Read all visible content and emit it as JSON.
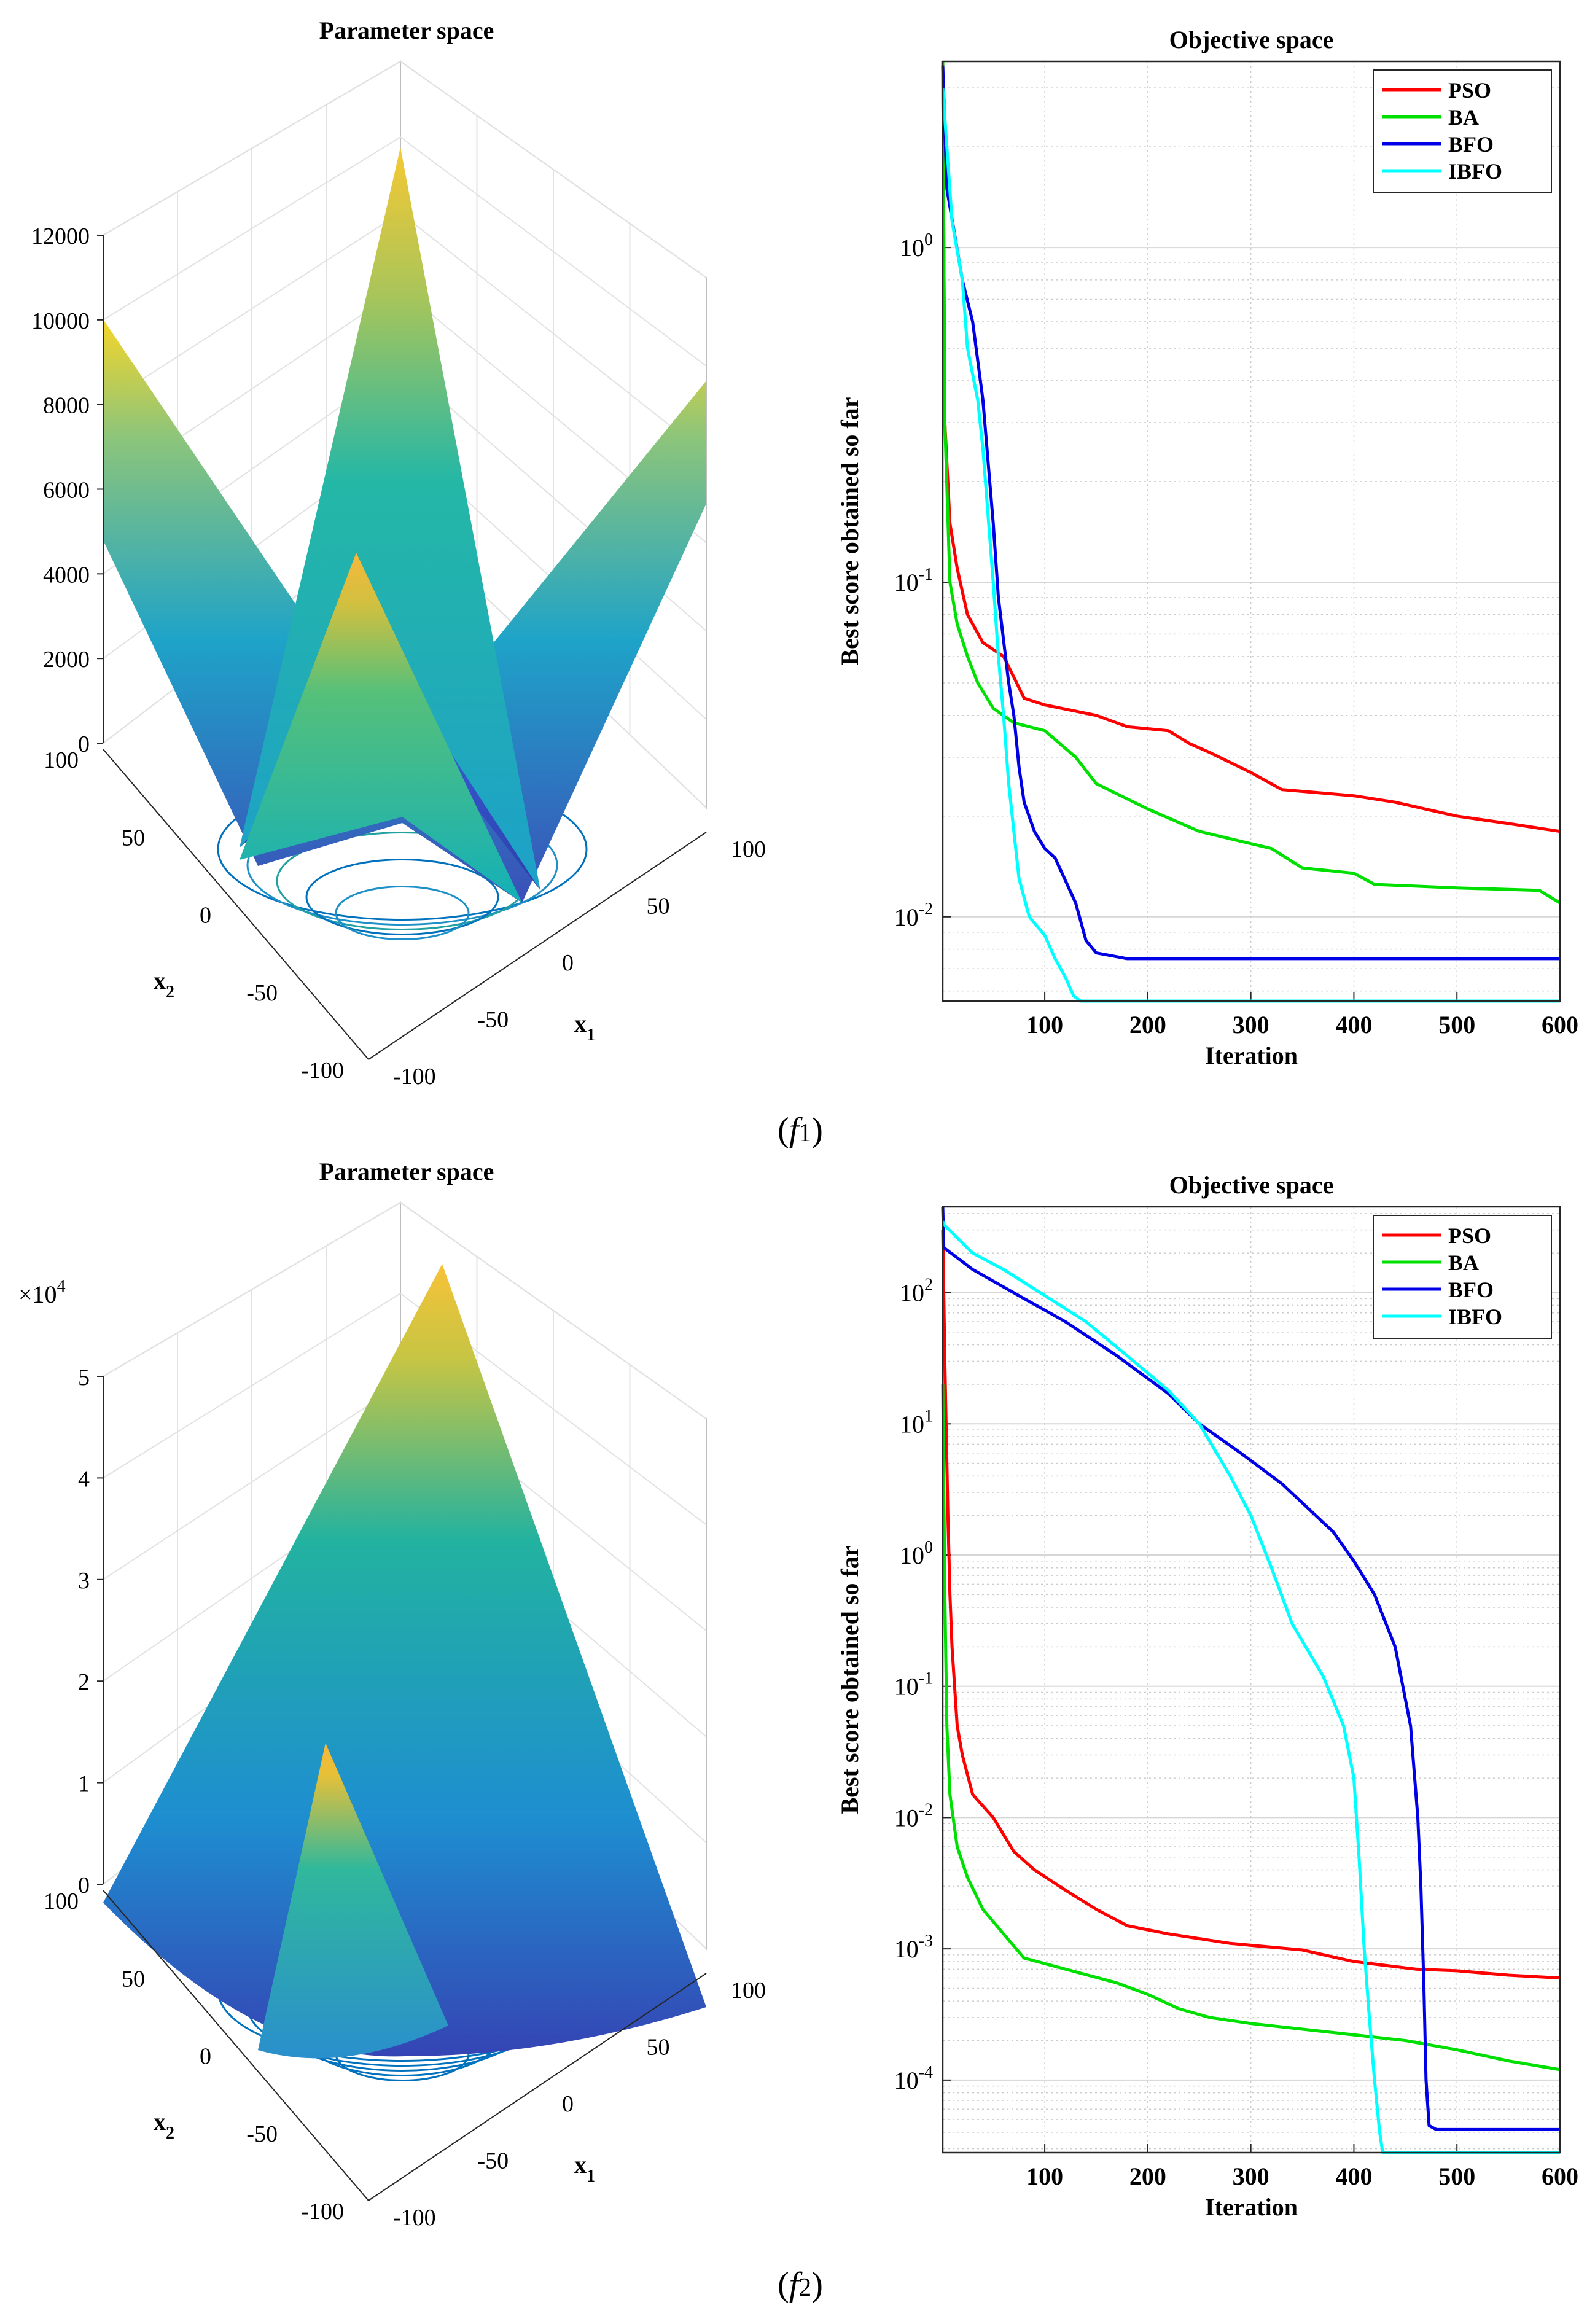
{
  "colors": {
    "pso": "#ff0000",
    "ba": "#00e000",
    "bfo": "#0000e6",
    "ibfo": "#00ffff",
    "grid": "#d0d0d0",
    "axis": "#262626"
  },
  "rows": [
    {
      "caption": {
        "var": "f",
        "sub": "1"
      },
      "surface": {
        "title": "Parameter space",
        "zticks": [
          "12000",
          "10000",
          "8000",
          "6000",
          "4000",
          "2000",
          "0"
        ],
        "zmult": "",
        "x1ticks": [
          "-100",
          "-50",
          "0",
          "50",
          "100"
        ],
        "x2ticks": [
          "100",
          "50",
          "0",
          "-50",
          "-100"
        ],
        "x1label": "x",
        "x1sub": "1",
        "x2label": "x",
        "x2sub": "2"
      },
      "chart_data": {
        "type": "line",
        "title": "Objective space",
        "xlabel": "Iteration",
        "ylabel": "Best score obtained so far",
        "yscale": "log",
        "xlim": [
          1,
          600
        ],
        "ylim": [
          0.0056,
          3.6
        ],
        "xticks": [
          "100",
          "200",
          "300",
          "400",
          "500",
          "600"
        ],
        "yticks": [
          {
            "base": "10",
            "exp": "0"
          },
          {
            "base": "10",
            "exp": "-1"
          },
          {
            "base": "10",
            "exp": "-2"
          }
        ],
        "legend": "top-right",
        "series": [
          {
            "name": "PSO",
            "color": "pso",
            "points": [
              [
                1,
                3.6
              ],
              [
                3,
                0.3
              ],
              [
                8,
                0.15
              ],
              [
                15,
                0.11
              ],
              [
                25,
                0.08
              ],
              [
                40,
                0.066
              ],
              [
                60,
                0.06
              ],
              [
                70,
                0.052
              ],
              [
                80,
                0.045
              ],
              [
                100,
                0.043
              ],
              [
                150,
                0.04
              ],
              [
                180,
                0.037
              ],
              [
                220,
                0.036
              ],
              [
                240,
                0.033
              ],
              [
                260,
                0.031
              ],
              [
                300,
                0.027
              ],
              [
                330,
                0.024
              ],
              [
                400,
                0.023
              ],
              [
                440,
                0.022
              ],
              [
                500,
                0.02
              ],
              [
                550,
                0.019
              ],
              [
                600,
                0.018
              ]
            ]
          },
          {
            "name": "BA",
            "color": "ba",
            "points": [
              [
                1,
                3.6
              ],
              [
                3,
                0.3
              ],
              [
                8,
                0.1
              ],
              [
                15,
                0.075
              ],
              [
                25,
                0.06
              ],
              [
                35,
                0.05
              ],
              [
                50,
                0.042
              ],
              [
                70,
                0.038
              ],
              [
                100,
                0.036
              ],
              [
                130,
                0.03
              ],
              [
                150,
                0.025
              ],
              [
                200,
                0.021
              ],
              [
                250,
                0.018
              ],
              [
                320,
                0.016
              ],
              [
                350,
                0.014
              ],
              [
                400,
                0.0135
              ],
              [
                420,
                0.0125
              ],
              [
                500,
                0.0122
              ],
              [
                580,
                0.012
              ],
              [
                600,
                0.011
              ]
            ]
          },
          {
            "name": "BFO",
            "color": "bfo",
            "points": [
              [
                1,
                3.5
              ],
              [
                5,
                1.5
              ],
              [
                20,
                0.8
              ],
              [
                30,
                0.6
              ],
              [
                40,
                0.35
              ],
              [
                50,
                0.15
              ],
              [
                55,
                0.09
              ],
              [
                65,
                0.05
              ],
              [
                70,
                0.04
              ],
              [
                75,
                0.028
              ],
              [
                80,
                0.022
              ],
              [
                90,
                0.018
              ],
              [
                100,
                0.016
              ],
              [
                110,
                0.015
              ],
              [
                130,
                0.011
              ],
              [
                140,
                0.0085
              ],
              [
                150,
                0.0078
              ],
              [
                180,
                0.0075
              ],
              [
                600,
                0.0075
              ]
            ]
          },
          {
            "name": "IBFO",
            "color": "ibfo",
            "points": [
              [
                1,
                3.0
              ],
              [
                10,
                1.2
              ],
              [
                20,
                0.8
              ],
              [
                25,
                0.5
              ],
              [
                35,
                0.35
              ],
              [
                40,
                0.25
              ],
              [
                50,
                0.1
              ],
              [
                55,
                0.06
              ],
              [
                60,
                0.04
              ],
              [
                65,
                0.025
              ],
              [
                70,
                0.018
              ],
              [
                75,
                0.013
              ],
              [
                85,
                0.01
              ],
              [
                100,
                0.0088
              ],
              [
                110,
                0.0075
              ],
              [
                120,
                0.0066
              ],
              [
                128,
                0.0058
              ],
              [
                135,
                0.0056
              ],
              [
                600,
                0.0056
              ]
            ]
          }
        ]
      }
    },
    {
      "caption": {
        "var": "f",
        "sub": "2"
      },
      "surface": {
        "title": "Parameter space",
        "zticks": [
          "5",
          "4",
          "3",
          "2",
          "1",
          "0"
        ],
        "zmult": "×10",
        "zmultexp": "4",
        "x1ticks": [
          "-100",
          "-50",
          "0",
          "50",
          "100"
        ],
        "x2ticks": [
          "100",
          "50",
          "0",
          "-50",
          "-100"
        ],
        "x1label": "x",
        "x1sub": "1",
        "x2label": "x",
        "x2sub": "2"
      },
      "chart_data": {
        "type": "line",
        "title": "Objective space",
        "xlabel": "Iteration",
        "ylabel": "Best score obtained so far",
        "yscale": "log",
        "xlim": [
          1,
          600
        ],
        "ylim": [
          2.8e-05,
          450
        ],
        "xticks": [
          "100",
          "200",
          "300",
          "400",
          "500",
          "600"
        ],
        "yticks": [
          {
            "base": "10",
            "exp": "2"
          },
          {
            "base": "10",
            "exp": "1"
          },
          {
            "base": "10",
            "exp": "0"
          },
          {
            "base": "10",
            "exp": "-1"
          },
          {
            "base": "10",
            "exp": "-2"
          },
          {
            "base": "10",
            "exp": "-3"
          },
          {
            "base": "10",
            "exp": "-4"
          }
        ],
        "legend": "top-right",
        "series": [
          {
            "name": "PSO",
            "color": "pso",
            "points": [
              [
                1,
                300
              ],
              [
                3,
                30
              ],
              [
                6,
                2
              ],
              [
                8,
                0.5
              ],
              [
                10,
                0.2
              ],
              [
                15,
                0.05
              ],
              [
                20,
                0.03
              ],
              [
                30,
                0.015
              ],
              [
                50,
                0.01
              ],
              [
                70,
                0.0055
              ],
              [
                90,
                0.004
              ],
              [
                120,
                0.0028
              ],
              [
                150,
                0.002
              ],
              [
                180,
                0.0015
              ],
              [
                220,
                0.0013
              ],
              [
                280,
                0.0011
              ],
              [
                350,
                0.00098
              ],
              [
                400,
                0.0008
              ],
              [
                460,
                0.0007
              ],
              [
                500,
                0.00068
              ],
              [
                550,
                0.00063
              ],
              [
                600,
                0.0006
              ]
            ]
          },
          {
            "name": "BA",
            "color": "ba",
            "points": [
              [
                1,
                20
              ],
              [
                3,
                0.5
              ],
              [
                5,
                0.05
              ],
              [
                8,
                0.015
              ],
              [
                15,
                0.006
              ],
              [
                25,
                0.0035
              ],
              [
                40,
                0.002
              ],
              [
                60,
                0.0013
              ],
              [
                80,
                0.00085
              ],
              [
                120,
                0.0007
              ],
              [
                170,
                0.00055
              ],
              [
                200,
                0.00045
              ],
              [
                230,
                0.00035
              ],
              [
                260,
                0.0003
              ],
              [
                300,
                0.00027
              ],
              [
                380,
                0.00023
              ],
              [
                450,
                0.0002
              ],
              [
                500,
                0.00017
              ],
              [
                550,
                0.00014
              ],
              [
                600,
                0.00012
              ]
            ]
          },
          {
            "name": "BFO",
            "color": "bfo",
            "points": [
              [
                1,
                450
              ],
              [
                2,
                220
              ],
              [
                30,
                150
              ],
              [
                80,
                90
              ],
              [
                120,
                60
              ],
              [
                170,
                33
              ],
              [
                220,
                17
              ],
              [
                250,
                10
              ],
              [
                290,
                6
              ],
              [
                330,
                3.5
              ],
              [
                380,
                1.5
              ],
              [
                400,
                0.9
              ],
              [
                420,
                0.5
              ],
              [
                440,
                0.2
              ],
              [
                455,
                0.05
              ],
              [
                462,
                0.01
              ],
              [
                465,
                0.003
              ],
              [
                468,
                0.0005
              ],
              [
                470,
                0.0001
              ],
              [
                473,
                4.5e-05
              ],
              [
                480,
                4.2e-05
              ],
              [
                600,
                4.2e-05
              ]
            ]
          },
          {
            "name": "IBFO",
            "color": "ibfo",
            "points": [
              [
                1,
                350
              ],
              [
                2,
                330
              ],
              [
                30,
                200
              ],
              [
                60,
                150
              ],
              [
                100,
                95
              ],
              [
                140,
                60
              ],
              [
                180,
                33
              ],
              [
                220,
                18
              ],
              [
                250,
                10
              ],
              [
                280,
                4
              ],
              [
                300,
                2
              ],
              [
                320,
                0.8
              ],
              [
                340,
                0.3
              ],
              [
                370,
                0.12
              ],
              [
                390,
                0.05
              ],
              [
                400,
                0.02
              ],
              [
                405,
                0.005
              ],
              [
                410,
                0.001
              ],
              [
                415,
                0.0003
              ],
              [
                420,
                0.0001
              ],
              [
                425,
                4e-05
              ],
              [
                428,
                2.8e-05
              ],
              [
                600,
                2.8e-05
              ]
            ]
          }
        ]
      }
    }
  ]
}
